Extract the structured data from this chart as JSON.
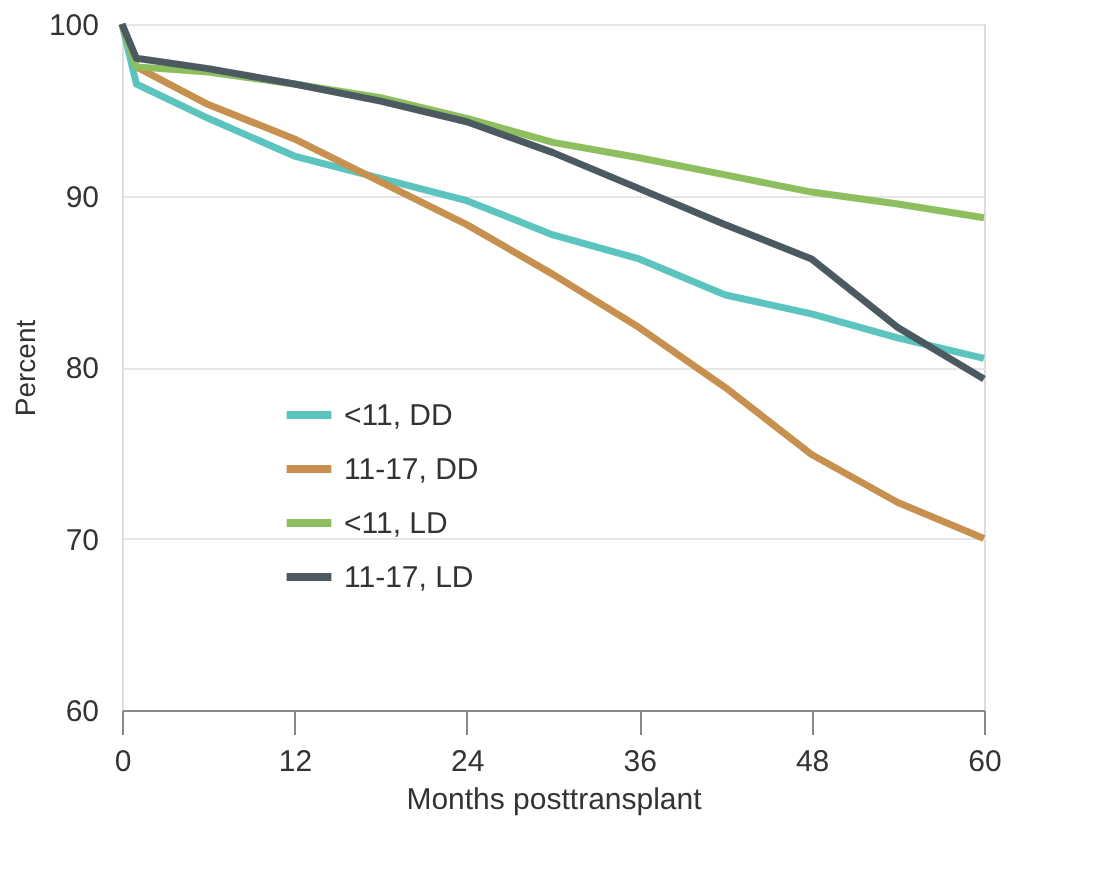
{
  "chart_data": {
    "type": "line",
    "xlabel": "Months posttransplant",
    "ylabel": "Percent",
    "xlim": [
      0,
      60
    ],
    "xticks": [
      0,
      12,
      24,
      36,
      48,
      60
    ],
    "ylim": [
      60,
      100
    ],
    "yticks": [
      60,
      70,
      80,
      90,
      100
    ],
    "grid": "y",
    "legend": "bottom left",
    "line_style": "solid",
    "x": [
      0,
      1,
      6,
      12,
      18,
      24,
      30,
      36,
      42,
      48,
      54,
      60
    ],
    "series": [
      {
        "name": "<11, DD",
        "color": "#5bc4bf",
        "values": [
          100,
          96.5,
          94.5,
          92.3,
          91.0,
          89.7,
          87.7,
          86.3,
          84.2,
          83.1,
          81.7,
          80.5
        ]
      },
      {
        "name": "11-17, DD",
        "color": "#c8904f",
        "values": [
          100,
          97.5,
          95.3,
          93.3,
          90.8,
          88.3,
          85.4,
          82.3,
          78.8,
          74.9,
          72.1,
          70.0
        ]
      },
      {
        "name": "<11, LD",
        "color": "#8dbf5e",
        "values": [
          100,
          97.5,
          97.2,
          96.5,
          95.7,
          94.5,
          93.1,
          92.2,
          91.2,
          90.2,
          89.5,
          88.7
        ]
      },
      {
        "name": "11-17, LD",
        "color": "#4a5a60",
        "values": [
          100,
          98.0,
          97.4,
          96.5,
          95.5,
          94.3,
          92.5,
          90.4,
          88.3,
          86.3,
          82.3,
          79.3
        ]
      }
    ]
  }
}
